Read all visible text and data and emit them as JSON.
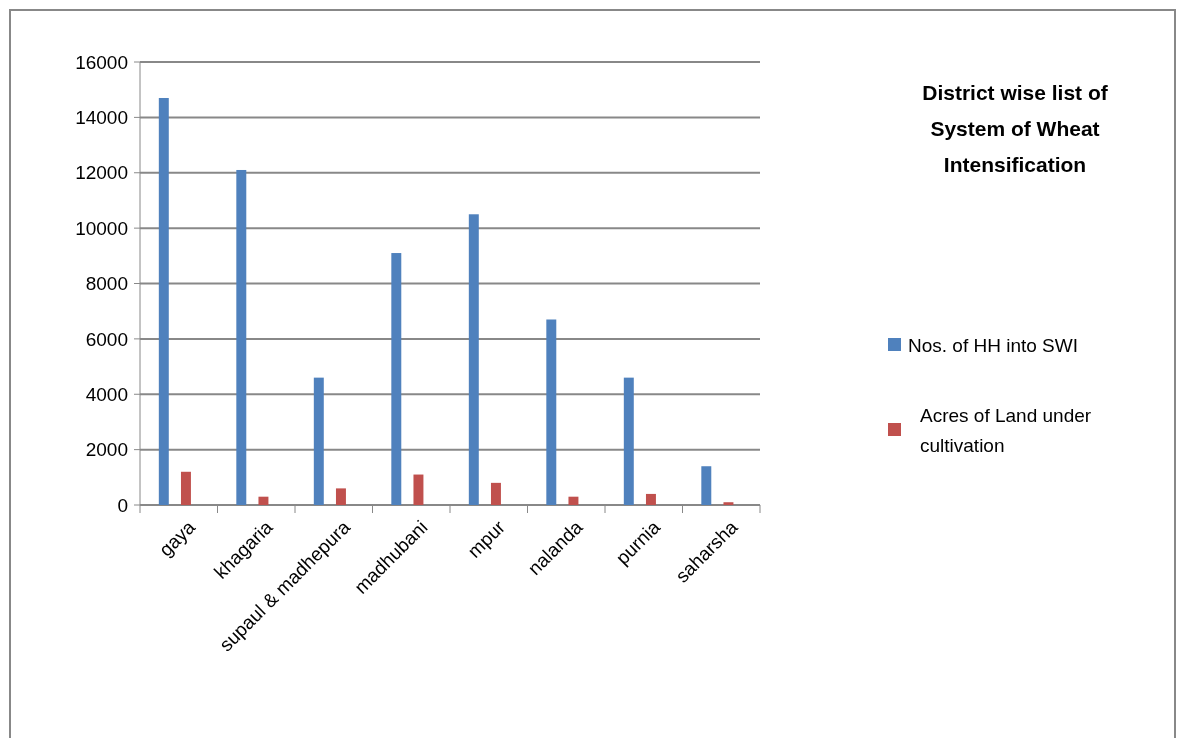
{
  "chart_data": {
    "type": "bar",
    "title": "District wise list of System of Wheat Intensification",
    "categories": [
      "gaya",
      "khagaria",
      "supaul & madhepura",
      "madhubani",
      "mpur",
      "nalanda",
      "purnia",
      "saharsha"
    ],
    "series": [
      {
        "name": "Nos. of HH into SWI",
        "color": "#4f81bd",
        "values": [
          14700,
          12100,
          4600,
          9100,
          10500,
          6700,
          4600,
          1400
        ]
      },
      {
        "name": "Acres of Land under cultivation",
        "color": "#c0504d",
        "values": [
          1200,
          300,
          600,
          1100,
          800,
          300,
          400,
          100
        ]
      }
    ],
    "ylim": [
      0,
      16000
    ],
    "yticks": [
      0,
      2000,
      4000,
      6000,
      8000,
      10000,
      12000,
      14000,
      16000
    ],
    "grid": "y",
    "legend": "right"
  }
}
